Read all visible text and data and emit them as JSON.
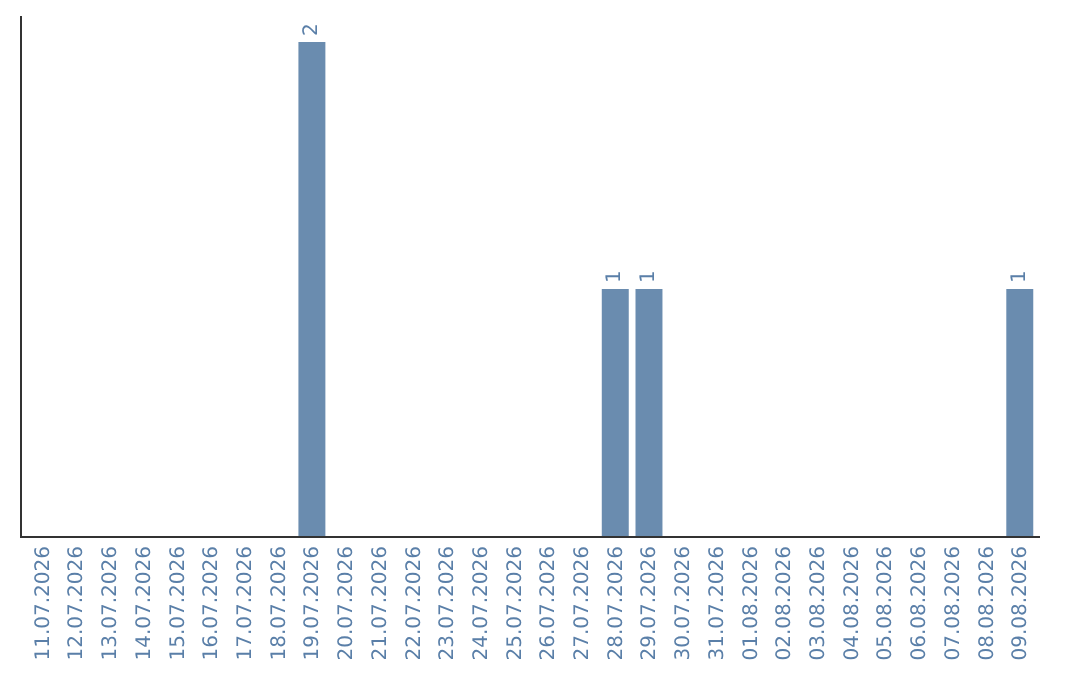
{
  "chart_data": {
    "type": "bar",
    "categories": [
      "11.07.2026",
      "12.07.2026",
      "13.07.2026",
      "14.07.2026",
      "15.07.2026",
      "16.07.2026",
      "17.07.2026",
      "18.07.2026",
      "19.07.2026",
      "20.07.2026",
      "21.07.2026",
      "22.07.2026",
      "23.07.2026",
      "24.07.2026",
      "25.07.2026",
      "26.07.2026",
      "27.07.2026",
      "28.07.2026",
      "29.07.2026",
      "30.07.2026",
      "31.07.2026",
      "01.08.2026",
      "02.08.2026",
      "03.08.2026",
      "04.08.2026",
      "05.08.2026",
      "06.08.2026",
      "07.08.2026",
      "08.08.2026",
      "09.08.2026"
    ],
    "values": [
      0,
      0,
      0,
      0,
      0,
      0,
      0,
      0,
      2,
      0,
      0,
      0,
      0,
      0,
      0,
      0,
      0,
      1,
      1,
      0,
      0,
      0,
      0,
      0,
      0,
      0,
      0,
      0,
      0,
      1
    ],
    "value_labels": [
      null,
      null,
      null,
      null,
      null,
      null,
      null,
      null,
      "2",
      null,
      null,
      null,
      null,
      null,
      null,
      null,
      null,
      "1",
      "1",
      null,
      null,
      null,
      null,
      null,
      null,
      null,
      null,
      null,
      null,
      "1"
    ],
    "color": "#6a8caf",
    "tick_labels": "x",
    "grid": false,
    "legend": false
  }
}
